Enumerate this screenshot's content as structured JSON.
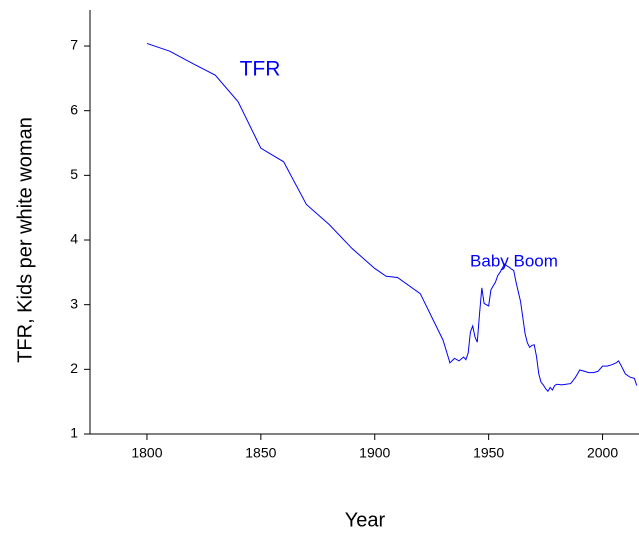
{
  "chart_data": {
    "type": "line",
    "x_label": "Year",
    "y_label": "TFR, Kids per white woman",
    "annotations": [
      "TFR",
      "Baby Boom"
    ],
    "xlim": [
      1775,
      2016
    ],
    "xticks": [
      1800,
      1850,
      1900,
      1950,
      2000
    ],
    "ylim": [
      1,
      7.5
    ],
    "yticks": [
      1,
      2,
      3,
      4,
      5,
      6,
      7
    ],
    "grid": false,
    "x": [
      1800,
      1810,
      1820,
      1830,
      1840,
      1850,
      1860,
      1870,
      1880,
      1890,
      1900,
      1905,
      1910,
      1920,
      1930,
      1933,
      1935,
      1937,
      1939,
      1940,
      1941,
      1942,
      1943,
      1944,
      1945,
      1946,
      1947,
      1948,
      1950,
      1951,
      1953,
      1954,
      1955,
      1957,
      1958,
      1959,
      1960,
      1961,
      1962,
      1963,
      1964,
      1965,
      1966,
      1967,
      1968,
      1969,
      1970,
      1971,
      1972,
      1973,
      1974,
      1975,
      1976,
      1977,
      1978,
      1979,
      1980,
      1982,
      1984,
      1986,
      1988,
      1990,
      1992,
      1994,
      1996,
      1998,
      2000,
      2002,
      2004,
      2006,
      2007,
      2008,
      2009,
      2010,
      2012,
      2014,
      2015
    ],
    "series": [
      {
        "color": "#0000ff",
        "values": [
          7.04,
          6.92,
          6.73,
          6.55,
          6.14,
          5.42,
          5.21,
          4.55,
          4.24,
          3.87,
          3.56,
          3.44,
          3.42,
          3.17,
          2.45,
          2.1,
          2.17,
          2.13,
          2.19,
          2.15,
          2.25,
          2.58,
          2.67,
          2.5,
          2.42,
          2.86,
          3.26,
          3.02,
          2.98,
          3.23,
          3.35,
          3.45,
          3.5,
          3.63,
          3.6,
          3.58,
          3.55,
          3.53,
          3.35,
          3.2,
          3.05,
          2.8,
          2.55,
          2.41,
          2.34,
          2.37,
          2.38,
          2.2,
          1.93,
          1.8,
          1.76,
          1.7,
          1.66,
          1.72,
          1.68,
          1.75,
          1.77,
          1.76,
          1.77,
          1.78,
          1.87,
          1.99,
          1.97,
          1.95,
          1.95,
          1.97,
          2.05,
          2.05,
          2.07,
          2.1,
          2.13,
          2.07,
          2.0,
          1.93,
          1.88,
          1.86,
          1.75
        ]
      }
    ]
  }
}
